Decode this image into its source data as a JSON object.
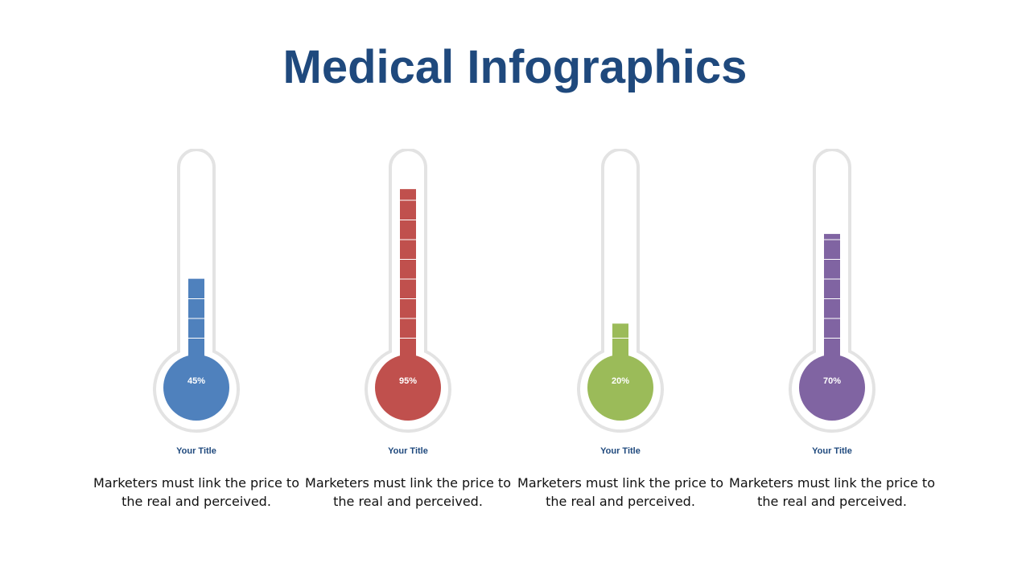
{
  "page": {
    "title": "Medical Infographics"
  },
  "items": [
    {
      "percent": 45,
      "label": "45%",
      "title": "Your Title",
      "description": "Marketers must link the price to the real and perceived.",
      "color": "#4f81bd"
    },
    {
      "percent": 95,
      "label": "95%",
      "title": "Your Title",
      "description": "Marketers must link the price to the real and perceived.",
      "color": "#c0504d"
    },
    {
      "percent": 20,
      "label": "20%",
      "title": "Your Title",
      "description": "Marketers must link the price to the real and perceived.",
      "color": "#9bbb59"
    },
    {
      "percent": 70,
      "label": "70%",
      "title": "Your Title",
      "description": "Marketers must link the price to the real and perceived.",
      "color": "#8064a2"
    }
  ]
}
